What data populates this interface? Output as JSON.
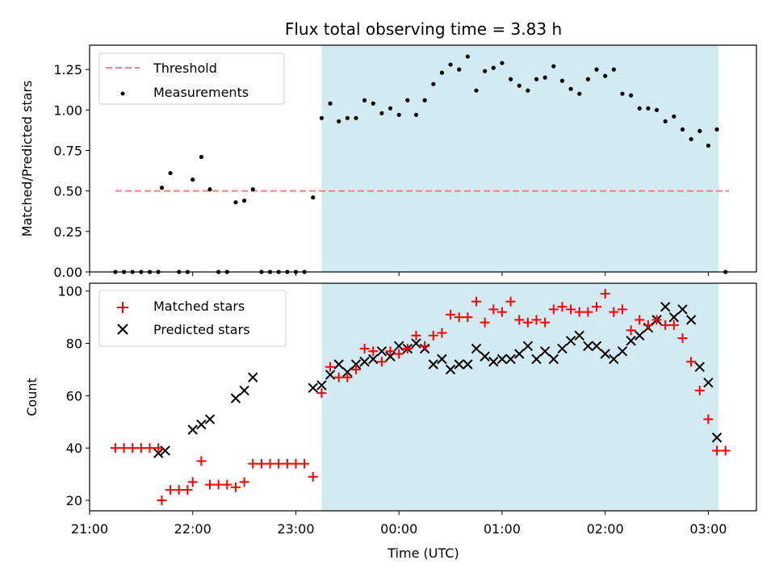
{
  "chart_data": [
    {
      "type": "scatter",
      "title": "Flux total observing time = 3.83 h",
      "xlabel": "",
      "ylabel": "Matched/Predicted stars",
      "x_unit": "time (UTC)",
      "xlim": [
        "21:00",
        "03:28"
      ],
      "ylim": [
        0,
        1.4
      ],
      "yticks": [
        0.0,
        0.25,
        0.5,
        0.75,
        1.0,
        1.25
      ],
      "ytick_labels": [
        "0.00",
        "0.25",
        "0.50",
        "0.75",
        "1.00",
        "1.25"
      ],
      "shaded_span": {
        "start": "23:15",
        "end": "03:06",
        "color": "#add8e6"
      },
      "threshold": {
        "name": "Threshold",
        "value": 0.5,
        "x_start": "21:15",
        "x_end": "03:12",
        "color": "#f08080",
        "style": "dashed"
      },
      "legend": {
        "placement": "upper-left",
        "entries": [
          "Threshold",
          "Measurements"
        ]
      },
      "series": [
        {
          "name": "Measurements",
          "color": "#000000",
          "marker": "dot",
          "x": [
            "21:15",
            "21:20",
            "21:25",
            "21:30",
            "21:35",
            "21:40",
            "21:42",
            "21:47",
            "21:52",
            "21:57",
            "22:00",
            "22:05",
            "22:10",
            "22:15",
            "22:20",
            "22:25",
            "22:30",
            "22:35",
            "22:40",
            "22:45",
            "22:50",
            "22:55",
            "23:00",
            "23:05",
            "23:10",
            "23:15",
            "23:20",
            "23:25",
            "23:30",
            "23:35",
            "23:40",
            "23:45",
            "23:50",
            "23:55",
            "00:00",
            "00:05",
            "00:10",
            "00:15",
            "00:20",
            "00:25",
            "00:30",
            "00:35",
            "00:40",
            "00:45",
            "00:50",
            "00:55",
            "01:00",
            "01:05",
            "01:10",
            "01:15",
            "01:20",
            "01:25",
            "01:30",
            "01:35",
            "01:40",
            "01:45",
            "01:50",
            "01:55",
            "02:00",
            "02:05",
            "02:10",
            "02:15",
            "02:20",
            "02:25",
            "02:30",
            "02:35",
            "02:40",
            "02:45",
            "02:50",
            "02:55",
            "03:00",
            "03:05",
            "03:10"
          ],
          "y": [
            0,
            0,
            0,
            0,
            0,
            0,
            0.52,
            0.61,
            0,
            0,
            0.57,
            0.71,
            0.51,
            0,
            0,
            0.43,
            0.44,
            0.51,
            0,
            0,
            0,
            0,
            0,
            0,
            0.46,
            0.95,
            1.04,
            0.93,
            0.95,
            0.95,
            1.06,
            1.04,
            0.98,
            1.01,
            0.97,
            1.06,
            0.97,
            1.06,
            1.16,
            1.23,
            1.28,
            1.25,
            1.33,
            1.12,
            1.24,
            1.26,
            1.29,
            1.19,
            1.15,
            1.12,
            1.19,
            1.2,
            1.27,
            1.18,
            1.13,
            1.1,
            1.19,
            1.25,
            1.21,
            1.25,
            1.1,
            1.09,
            1.01,
            1.01,
            1.0,
            0.93,
            0.96,
            0.88,
            0.82,
            0.87,
            0.78,
            0.88,
            0
          ]
        }
      ]
    },
    {
      "type": "scatter",
      "title": "",
      "xlabel": "Time (UTC)",
      "ylabel": "Count",
      "xlim": [
        "21:00",
        "03:28"
      ],
      "ylim": [
        16,
        103
      ],
      "yticks": [
        20,
        40,
        60,
        80,
        100
      ],
      "xticks": [
        "21:00",
        "22:00",
        "23:00",
        "00:00",
        "01:00",
        "02:00",
        "03:00"
      ],
      "shaded_span": {
        "start": "23:15",
        "end": "03:06",
        "color": "#add8e6"
      },
      "legend": {
        "placement": "upper-left",
        "entries": [
          "Matched stars",
          "Predicted stars"
        ]
      },
      "series": [
        {
          "name": "Matched stars",
          "color": "#ff0000",
          "marker": "plus",
          "x": [
            "21:15",
            "21:20",
            "21:25",
            "21:30",
            "21:35",
            "21:40",
            "21:42",
            "21:47",
            "21:52",
            "21:57",
            "22:00",
            "22:05",
            "22:10",
            "22:15",
            "22:20",
            "22:25",
            "22:30",
            "22:35",
            "22:40",
            "22:45",
            "22:50",
            "22:55",
            "23:00",
            "23:05",
            "23:10",
            "23:15",
            "23:20",
            "23:25",
            "23:30",
            "23:35",
            "23:40",
            "23:45",
            "23:50",
            "23:55",
            "00:00",
            "00:05",
            "00:10",
            "00:15",
            "00:20",
            "00:25",
            "00:30",
            "00:35",
            "00:40",
            "00:45",
            "00:50",
            "00:55",
            "01:00",
            "01:05",
            "01:10",
            "01:15",
            "01:20",
            "01:25",
            "01:30",
            "01:35",
            "01:40",
            "01:45",
            "01:50",
            "01:55",
            "02:00",
            "02:05",
            "02:10",
            "02:15",
            "02:20",
            "02:25",
            "02:30",
            "02:35",
            "02:40",
            "02:45",
            "02:50",
            "02:55",
            "03:00",
            "03:05",
            "03:10"
          ],
          "y": [
            40,
            40,
            40,
            40,
            40,
            40,
            20,
            24,
            24,
            24,
            27,
            35,
            26,
            26,
            26,
            25,
            27,
            34,
            34,
            34,
            34,
            34,
            34,
            34,
            29,
            61,
            71,
            67,
            67,
            70,
            78,
            77,
            73,
            77,
            76,
            78,
            83,
            79,
            83,
            84,
            91,
            90,
            90,
            96,
            88,
            93,
            92,
            96,
            89,
            88,
            89,
            88,
            93,
            94,
            93,
            92,
            92,
            94,
            99,
            92,
            93,
            85,
            89,
            87,
            89,
            87,
            87,
            82,
            73,
            62,
            51,
            39,
            39
          ]
        },
        {
          "name": "Predicted stars",
          "color": "#000000",
          "marker": "x",
          "x": [
            "21:40",
            "21:44",
            "22:00",
            "22:05",
            "22:10",
            "22:25",
            "22:30",
            "22:35",
            "23:10",
            "23:15",
            "23:20",
            "23:25",
            "23:30",
            "23:35",
            "23:40",
            "23:45",
            "23:50",
            "23:55",
            "00:00",
            "00:05",
            "00:10",
            "00:15",
            "00:20",
            "00:25",
            "00:30",
            "00:35",
            "00:40",
            "00:45",
            "00:50",
            "00:55",
            "01:00",
            "01:05",
            "01:10",
            "01:15",
            "01:20",
            "01:25",
            "01:30",
            "01:35",
            "01:40",
            "01:45",
            "01:50",
            "01:55",
            "02:00",
            "02:05",
            "02:10",
            "02:15",
            "02:20",
            "02:25",
            "02:30",
            "02:35",
            "02:40",
            "02:45",
            "02:50",
            "02:55",
            "03:00",
            "03:05"
          ],
          "y": [
            38,
            39,
            47,
            49,
            51,
            59,
            62,
            67,
            63,
            64,
            68,
            72,
            69,
            72,
            73,
            74,
            77,
            75,
            79,
            78,
            80,
            78,
            72,
            74,
            70,
            72,
            72,
            78,
            75,
            73,
            74,
            74,
            76,
            79,
            74,
            77,
            74,
            78,
            81,
            83,
            79,
            79,
            76,
            74,
            77,
            81,
            83,
            86,
            89,
            94,
            90,
            93,
            89,
            71,
            65,
            44
          ]
        }
      ]
    }
  ]
}
